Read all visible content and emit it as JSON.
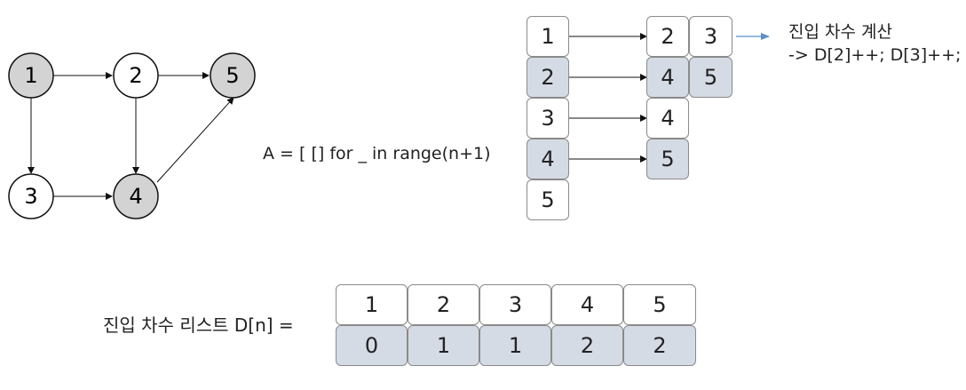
{
  "graph": {
    "nodes": [
      {
        "label": "1",
        "filled": true
      },
      {
        "label": "2",
        "filled": false
      },
      {
        "label": "5",
        "filled": true
      },
      {
        "label": "3",
        "filled": false
      },
      {
        "label": "4",
        "filled": true
      }
    ],
    "edges": [
      [
        "1",
        "2"
      ],
      [
        "2",
        "5"
      ],
      [
        "1",
        "3"
      ],
      [
        "2",
        "4"
      ],
      [
        "3",
        "4"
      ],
      [
        "4",
        "5"
      ]
    ]
  },
  "adjacency": {
    "code": "A = [ [] for _ in range(n+1)",
    "rows": [
      {
        "head": "1",
        "items": [
          "2",
          "3"
        ]
      },
      {
        "head": "2",
        "items": [
          "4",
          "5"
        ]
      },
      {
        "head": "3",
        "items": [
          "4"
        ]
      },
      {
        "head": "4",
        "items": [
          "5"
        ]
      },
      {
        "head": "5",
        "items": []
      }
    ],
    "note_title": "진입 차수 계산",
    "note_code": "-> D[2]++; D[3]++;"
  },
  "indegree": {
    "label": "진입 차수 리스트 D[n] =",
    "index": [
      "1",
      "2",
      "3",
      "4",
      "5"
    ],
    "values": [
      "0",
      "1",
      "1",
      "2",
      "2"
    ]
  },
  "colors": {
    "node_fill": "#d3d3d3",
    "cell_highlight": "#d5dbe5",
    "note_arrow": "#5b8fc7"
  }
}
